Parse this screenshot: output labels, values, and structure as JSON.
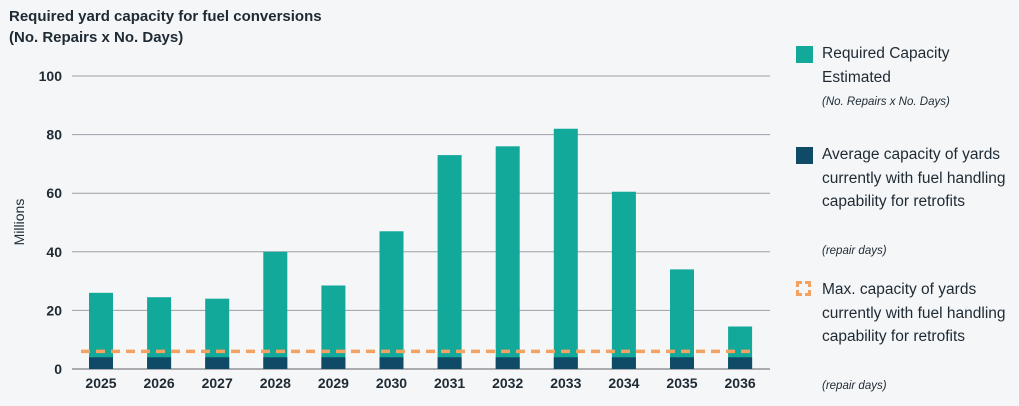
{
  "title_line1": "Required yard capacity for fuel conversions",
  "title_line2": "(No. Repairs x No. Days)",
  "colors": {
    "required": "#12a89a",
    "average": "#0f4a66",
    "max": "#f4a261",
    "grid": "#9aa0a6"
  },
  "legend": {
    "required_label": "Required Capacity Estimated",
    "required_sub": "(No. Repairs x No. Days)",
    "average_label": "Average capacity of yards currently with fuel handling capability for retrofits",
    "average_sub": "(repair days)",
    "max_label": "Max. capacity of yards currently with fuel handling capability for retrofits",
    "max_sub": "(repair days)"
  },
  "chart_data": {
    "type": "bar",
    "title": "Required yard capacity for fuel conversions (No. Repairs x No. Days)",
    "ylabel": "Millions",
    "xlabel": "",
    "ylim": [
      0,
      100
    ],
    "yticks": [
      0,
      20,
      40,
      60,
      80,
      100
    ],
    "grid": true,
    "legend_position": "right",
    "categories": [
      "2025",
      "2026",
      "2027",
      "2028",
      "2029",
      "2030",
      "2031",
      "2032",
      "2033",
      "2034",
      "2035",
      "2036"
    ],
    "series": [
      {
        "name": "Required Capacity Estimated",
        "kind": "bar",
        "values": [
          26,
          24.5,
          24,
          40,
          28.5,
          47,
          73,
          76,
          82,
          60.5,
          34,
          14.5
        ]
      },
      {
        "name": "Average capacity of yards currently with fuel handling capability for retrofits",
        "kind": "bar",
        "values": [
          4,
          4,
          4,
          4,
          4,
          4,
          4,
          4,
          4,
          4,
          4,
          4
        ]
      },
      {
        "name": "Max. capacity of yards currently with fuel handling capability for retrofits",
        "kind": "line",
        "style": "dashed",
        "values": [
          6,
          6,
          6,
          6,
          6,
          6,
          6,
          6,
          6,
          6,
          6,
          6
        ]
      }
    ]
  }
}
